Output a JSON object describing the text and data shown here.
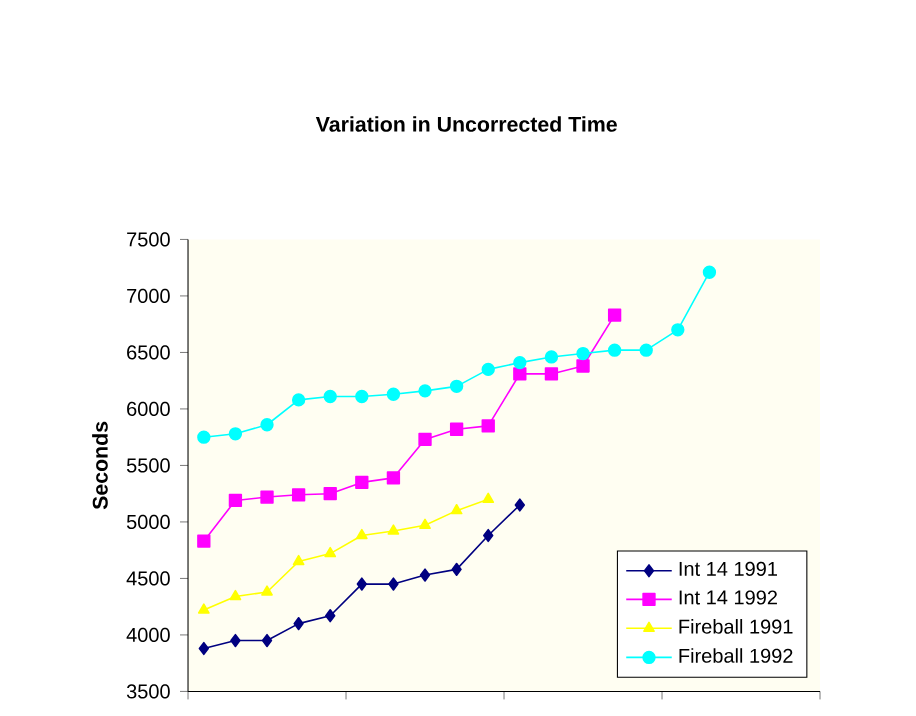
{
  "chart_data": {
    "type": "line",
    "title": "Variation in Uncorrected Time",
    "ylabel": "Seconds",
    "categories": [
      null,
      null,
      null,
      null,
      null,
      null,
      null,
      null,
      null,
      null,
      null,
      null,
      null,
      null,
      null,
      null,
      null,
      null,
      null,
      null
    ],
    "series": [
      {
        "name": "Int 14 1991",
        "color": "#000080",
        "marker": "diamond",
        "values": [
          3880,
          3950,
          3950,
          4100,
          4170,
          4450,
          4450,
          4530,
          4580,
          4880,
          5150,
          null,
          null,
          null,
          null,
          null,
          null,
          null,
          null,
          null
        ]
      },
      {
        "name": "Int 14 1992",
        "color": "#ff00ff",
        "marker": "square",
        "values": [
          4830,
          5190,
          5220,
          5240,
          5250,
          5350,
          5390,
          5730,
          5820,
          5850,
          6310,
          6310,
          6380,
          6830,
          null,
          null,
          null,
          null,
          null,
          null
        ]
      },
      {
        "name": "Fireball 1991",
        "color": "#ffff00",
        "marker": "triangle",
        "values": [
          4220,
          4340,
          4380,
          4650,
          4720,
          4880,
          4920,
          4970,
          5100,
          5200,
          null,
          null,
          null,
          null,
          null,
          null,
          null,
          null,
          null,
          null
        ]
      },
      {
        "name": "Fireball 1992",
        "color": "#00ffff",
        "marker": "circle",
        "values": [
          5750,
          5780,
          5860,
          6080,
          6110,
          6110,
          6130,
          6160,
          6200,
          6350,
          6410,
          6460,
          6490,
          6520,
          6520,
          6700,
          7210,
          null,
          null,
          null
        ]
      }
    ],
    "ylim": [
      3500,
      7500
    ],
    "yticks": [
      3500,
      4000,
      4500,
      5000,
      5500,
      6000,
      6500,
      7000,
      7500
    ],
    "grid": false,
    "legend": "bottom right",
    "line_style": "solid"
  }
}
